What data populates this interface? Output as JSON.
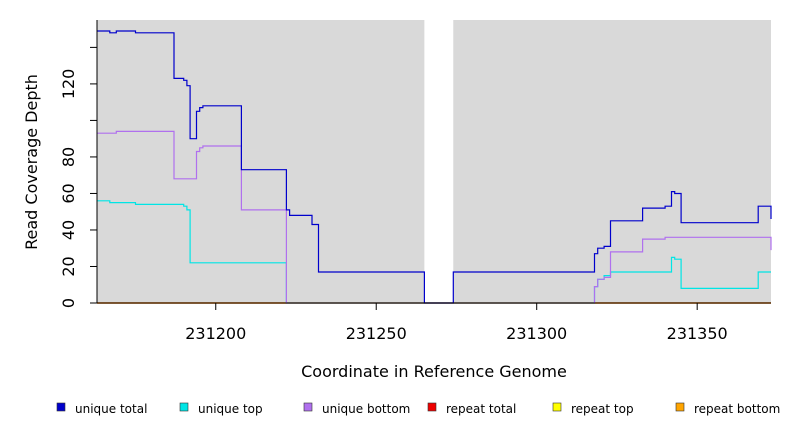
{
  "chart_data": {
    "type": "line",
    "xlabel": "Coordinate in Reference Genome",
    "ylabel": "Read Coverage Depth",
    "xlim": [
      231163,
      231373
    ],
    "ylim": [
      0,
      155
    ],
    "x_ticks": [
      231200,
      231250,
      231300,
      231350
    ],
    "x_tick_labels": [
      "231200",
      "231250",
      "231300",
      "231350"
    ],
    "y_ticks": [
      0,
      20,
      40,
      60,
      80,
      120
    ],
    "y_tick_labels": [
      "0",
      "20",
      "40",
      "60",
      "80",
      "120"
    ],
    "y_minor_ticks": [
      100,
      140
    ],
    "grid": false,
    "background": "#d9d9d9",
    "gap": [
      231265,
      231274
    ],
    "legend_position": "bottom",
    "series": [
      {
        "name": "unique total",
        "color": "#0000cc",
        "points": [
          [
            231163,
            149
          ],
          [
            231167,
            149
          ],
          [
            231167,
            148
          ],
          [
            231169,
            148
          ],
          [
            231169,
            149
          ],
          [
            231175,
            149
          ],
          [
            231175,
            148
          ],
          [
            231187,
            148
          ],
          [
            231187,
            123
          ],
          [
            231190,
            123
          ],
          [
            231190,
            122
          ],
          [
            231191,
            122
          ],
          [
            231191,
            119
          ],
          [
            231192,
            119
          ],
          [
            231192,
            90
          ],
          [
            231194,
            90
          ],
          [
            231194,
            105
          ],
          [
            231195,
            105
          ],
          [
            231195,
            107
          ],
          [
            231196,
            107
          ],
          [
            231196,
            108
          ],
          [
            231208,
            108
          ],
          [
            231208,
            73
          ],
          [
            231222,
            73
          ],
          [
            231222,
            51
          ],
          [
            231223,
            51
          ],
          [
            231223,
            48
          ],
          [
            231230,
            48
          ],
          [
            231230,
            43
          ],
          [
            231232,
            43
          ],
          [
            231232,
            17
          ],
          [
            231265,
            17
          ],
          [
            231265,
            0
          ],
          [
            231274,
            0
          ],
          [
            231274,
            17
          ],
          [
            231318,
            17
          ],
          [
            231318,
            27
          ],
          [
            231319,
            27
          ],
          [
            231319,
            30
          ],
          [
            231321,
            30
          ],
          [
            231321,
            31
          ],
          [
            231323,
            31
          ],
          [
            231323,
            45
          ],
          [
            231333,
            45
          ],
          [
            231333,
            52
          ],
          [
            231340,
            52
          ],
          [
            231340,
            53
          ],
          [
            231342,
            53
          ],
          [
            231342,
            61
          ],
          [
            231343,
            61
          ],
          [
            231343,
            60
          ],
          [
            231345,
            60
          ],
          [
            231345,
            44
          ],
          [
            231369,
            44
          ],
          [
            231369,
            53
          ],
          [
            231373,
            53
          ],
          [
            231373,
            46
          ]
        ]
      },
      {
        "name": "unique top",
        "color": "#00e5e5",
        "points": [
          [
            231163,
            56
          ],
          [
            231167,
            56
          ],
          [
            231167,
            55
          ],
          [
            231175,
            55
          ],
          [
            231175,
            54
          ],
          [
            231190,
            54
          ],
          [
            231190,
            53
          ],
          [
            231191,
            53
          ],
          [
            231191,
            51
          ],
          [
            231192,
            51
          ],
          [
            231192,
            22
          ],
          [
            231222,
            22
          ],
          [
            231222,
            0
          ],
          [
            231274,
            0
          ],
          [
            231274,
            0
          ],
          [
            231318,
            0
          ],
          [
            231318,
            9
          ],
          [
            231319,
            9
          ],
          [
            231319,
            13
          ],
          [
            231321,
            13
          ],
          [
            231321,
            15
          ],
          [
            231323,
            15
          ],
          [
            231323,
            17
          ],
          [
            231342,
            17
          ],
          [
            231342,
            25
          ],
          [
            231343,
            25
          ],
          [
            231343,
            24
          ],
          [
            231345,
            24
          ],
          [
            231345,
            8
          ],
          [
            231369,
            8
          ],
          [
            231369,
            17
          ],
          [
            231373,
            17
          ]
        ]
      },
      {
        "name": "unique bottom",
        "color": "#b070ee",
        "points": [
          [
            231163,
            93
          ],
          [
            231169,
            93
          ],
          [
            231169,
            94
          ],
          [
            231187,
            94
          ],
          [
            231187,
            68
          ],
          [
            231194,
            68
          ],
          [
            231194,
            83
          ],
          [
            231195,
            83
          ],
          [
            231195,
            85
          ],
          [
            231196,
            85
          ],
          [
            231196,
            86
          ],
          [
            231208,
            86
          ],
          [
            231208,
            51
          ],
          [
            231222,
            51
          ],
          [
            231222,
            0
          ],
          [
            231265,
            0
          ],
          [
            231274,
            0
          ],
          [
            231318,
            0
          ],
          [
            231318,
            9
          ],
          [
            231319,
            9
          ],
          [
            231319,
            13
          ],
          [
            231321,
            13
          ],
          [
            231321,
            14
          ],
          [
            231323,
            14
          ],
          [
            231323,
            28
          ],
          [
            231333,
            28
          ],
          [
            231333,
            35
          ],
          [
            231340,
            35
          ],
          [
            231340,
            36
          ],
          [
            231373,
            36
          ],
          [
            231373,
            29
          ]
        ]
      },
      {
        "name": "repeat total",
        "color": "#ee0000",
        "points": [
          [
            231163,
            0
          ],
          [
            231373,
            0
          ]
        ]
      },
      {
        "name": "repeat top",
        "color": "#ffff00",
        "points": [
          [
            231163,
            0
          ],
          [
            231373,
            0
          ]
        ]
      },
      {
        "name": "repeat bottom",
        "color": "#ffa500",
        "points": [
          [
            231163,
            0
          ],
          [
            231373,
            0
          ]
        ]
      }
    ]
  }
}
